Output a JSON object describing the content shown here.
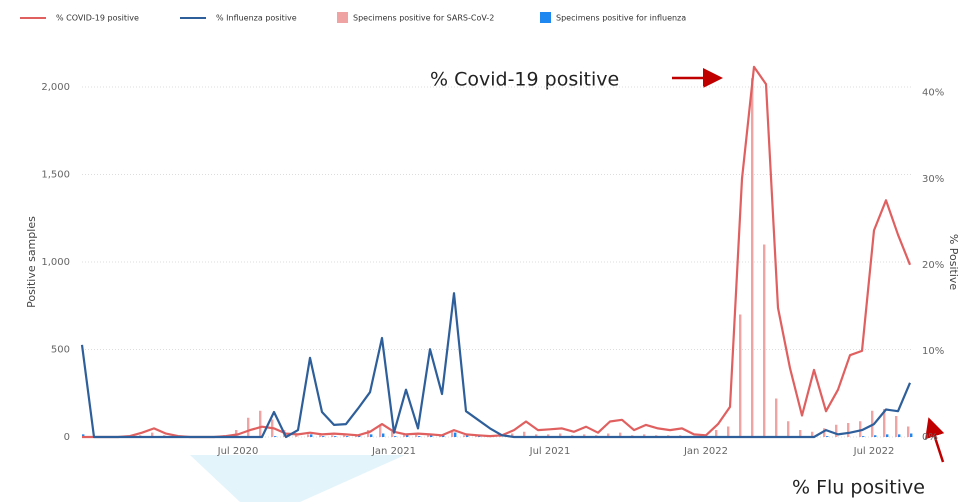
{
  "chart_data": {
    "type": "bar_line",
    "categories": [
      null,
      null,
      null,
      null,
      null,
      null,
      null,
      null,
      null,
      null,
      null,
      null,
      null,
      "Jul 2020",
      null,
      null,
      null,
      null,
      null,
      null,
      null,
      null,
      null,
      null,
      null,
      null,
      "Jan 2021",
      null,
      null,
      null,
      null,
      null,
      null,
      null,
      null,
      null,
      null,
      null,
      null,
      "Jul 2021",
      null,
      null,
      null,
      null,
      null,
      null,
      null,
      null,
      null,
      null,
      null,
      null,
      "Jan 2022",
      null,
      null,
      null,
      null,
      null,
      null,
      null,
      null,
      null,
      null,
      null,
      null,
      null,
      "Jul 2022",
      null,
      null,
      null
    ],
    "series": [
      {
        "name": "% COVID-19 positive",
        "kind": "line",
        "axis": "y2",
        "color": "#e06060",
        "values": [
          0,
          0,
          0,
          0,
          0.1,
          0.5,
          1.0,
          0.4,
          0.1,
          0,
          0,
          0,
          0.1,
          0.3,
          0.8,
          1.2,
          1.0,
          0.4,
          0.3,
          0.5,
          0.3,
          0.4,
          0.3,
          0.2,
          0.6,
          1.5,
          0.6,
          0.3,
          0.4,
          0.3,
          0.2,
          0.8,
          0.3,
          0.2,
          0.1,
          0.2,
          0.8,
          1.8,
          0.8,
          0.9,
          1.0,
          0.6,
          1.2,
          0.5,
          1.8,
          2.0,
          0.8,
          1.4,
          1.0,
          0.8,
          1.0,
          0.3,
          0.2,
          1.5,
          3.5,
          30,
          43,
          41,
          15,
          8,
          2.5,
          7.8,
          3,
          5.5,
          9.5,
          10,
          24,
          27.5,
          23.5,
          20
        ]
      },
      {
        "name": "% Influenza positive",
        "kind": "line",
        "axis": "y2",
        "color": "#2f5f9a",
        "values": [
          10.7,
          0,
          0,
          0,
          0,
          0,
          0,
          0,
          0,
          0,
          0,
          0,
          0,
          0,
          0,
          0,
          2.9,
          0,
          0.8,
          9.2,
          2.9,
          1.4,
          1.5,
          3.3,
          5.2,
          11.5,
          0.5,
          5.5,
          1,
          10.2,
          5,
          16.7,
          3,
          2,
          1,
          0.2,
          0,
          0,
          0,
          0,
          0,
          0,
          0,
          0,
          0,
          0,
          0,
          0,
          0,
          0,
          0,
          0,
          0,
          0,
          0,
          0,
          0,
          0,
          0,
          0,
          0,
          0,
          0.8,
          0.3,
          0.5,
          0.8,
          1.5,
          3.2,
          3,
          6.3
        ]
      },
      {
        "name": "Specimens positive for SARS-CoV-2",
        "kind": "bar",
        "color": "#f0a3a3",
        "values": [
          0,
          0,
          0,
          0,
          0,
          10,
          25,
          10,
          0,
          0,
          0,
          5,
          10,
          40,
          110,
          150,
          100,
          40,
          20,
          15,
          10,
          10,
          10,
          15,
          40,
          70,
          30,
          15,
          20,
          10,
          10,
          30,
          10,
          5,
          5,
          5,
          20,
          30,
          15,
          15,
          20,
          10,
          15,
          10,
          20,
          25,
          10,
          15,
          10,
          10,
          10,
          5,
          5,
          40,
          60,
          700,
          2050,
          1100,
          220,
          90,
          40,
          30,
          50,
          70,
          80,
          90,
          150,
          160,
          120,
          60
        ]
      },
      {
        "name": "Specimens positive for influenza",
        "kind": "bar",
        "color": "#1e88f0",
        "values": [
          15,
          0,
          0,
          0,
          0,
          0,
          0,
          0,
          0,
          0,
          0,
          0,
          0,
          0,
          0,
          0,
          5,
          0,
          0,
          15,
          5,
          5,
          5,
          10,
          15,
          20,
          5,
          15,
          5,
          20,
          15,
          25,
          10,
          5,
          0,
          0,
          0,
          0,
          0,
          0,
          0,
          0,
          0,
          0,
          0,
          0,
          0,
          0,
          0,
          0,
          0,
          0,
          0,
          0,
          0,
          0,
          0,
          0,
          0,
          0,
          0,
          0,
          5,
          0,
          0,
          5,
          10,
          15,
          15,
          20
        ]
      }
    ],
    "ylabel": "Positive samples",
    "y2label": "% Positive",
    "ylim": [
      0,
      2120
    ],
    "yticks": [
      0,
      500,
      {
        "value": 1000,
        "label": "1,000"
      },
      {
        "value": 1500,
        "label": "1,500"
      },
      {
        "value": 2000,
        "label": "2,000"
      }
    ],
    "y2lim": [
      0,
      43.1
    ],
    "y2ticks": [
      {
        "value": 0,
        "label": "0%"
      },
      {
        "value": 10,
        "label": "10%"
      },
      {
        "value": 20,
        "label": "20%"
      },
      {
        "value": 30,
        "label": "30%"
      },
      {
        "value": 40,
        "label": "40%"
      }
    ],
    "grid": true,
    "annotations": [
      "% Covid-19 positive",
      "% Flu positive"
    ]
  }
}
